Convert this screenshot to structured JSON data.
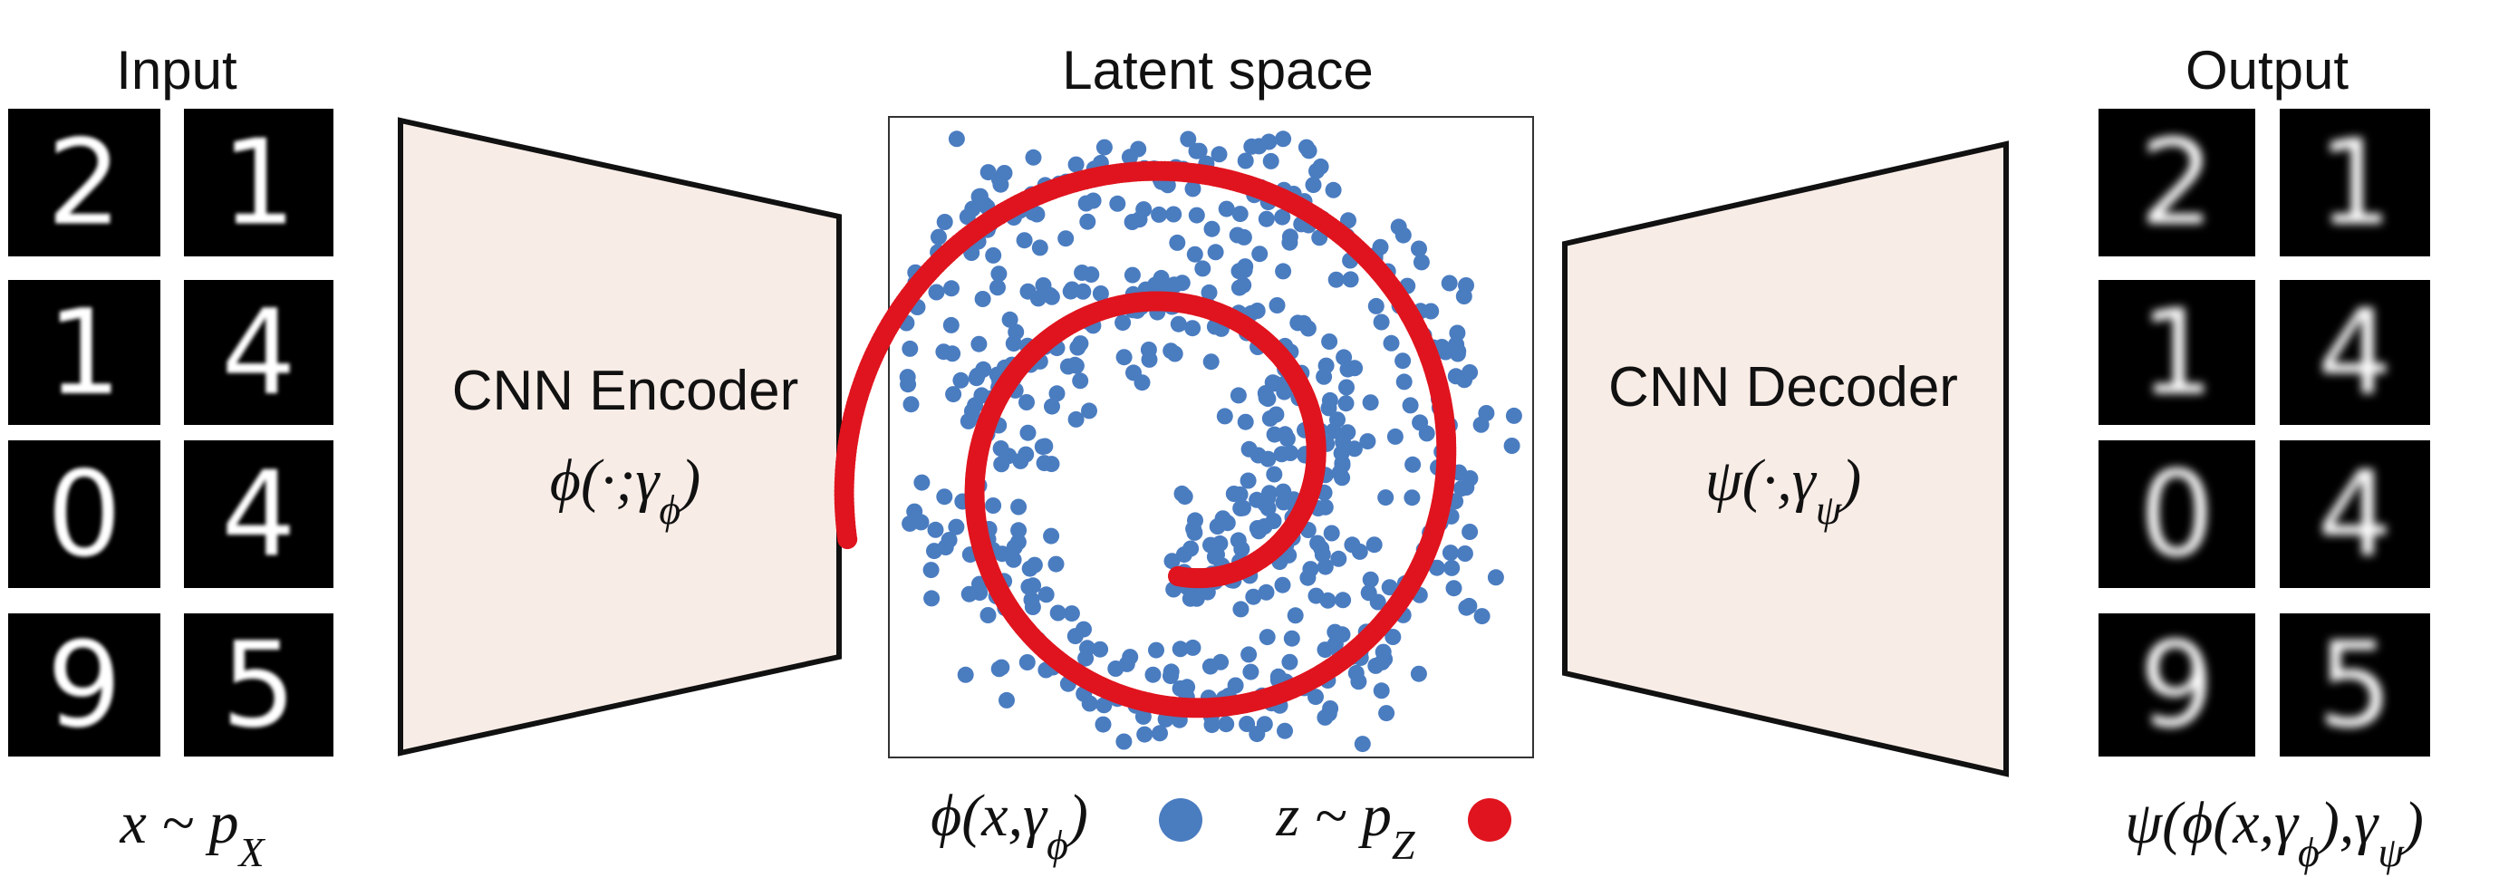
{
  "input": {
    "title": "Input",
    "digits": [
      "2",
      "1",
      "1",
      "4",
      "0",
      "4",
      "9",
      "5"
    ],
    "formula": [
      "x ~ p",
      "X"
    ]
  },
  "encoder": {
    "title": "CNN Encoder",
    "formula": [
      "ϕ(·;γ",
      "ϕ",
      ")"
    ]
  },
  "latent": {
    "title": "Latent space",
    "legend": [
      {
        "formula": [
          "ϕ(x,γ",
          "ϕ",
          ")"
        ],
        "color": "#4a7cc0"
      },
      {
        "formula": [
          "z ~ p",
          "Z"
        ],
        "color": "#e0141e"
      }
    ]
  },
  "decoder": {
    "title": "CNN Decoder",
    "formula": [
      "ψ(·,γ",
      "ψ",
      ")"
    ]
  },
  "output": {
    "title": "Output",
    "digits": [
      "2",
      "1",
      "1",
      "4",
      "0",
      "4",
      "9",
      "5"
    ],
    "formula": [
      "ψ(ϕ(x,γ",
      "ϕ",
      "),γ",
      "ψ",
      ")"
    ]
  }
}
